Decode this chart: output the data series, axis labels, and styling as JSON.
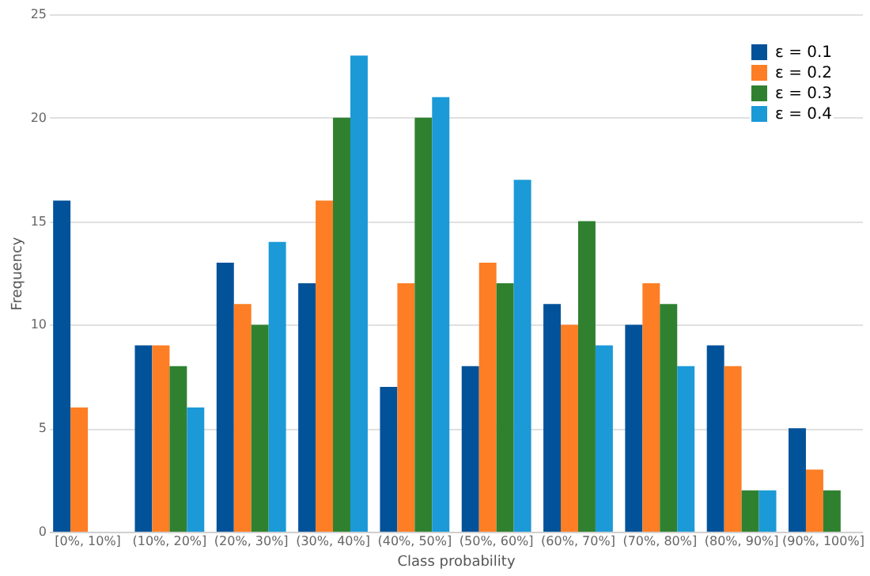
{
  "chart_data": {
    "type": "bar",
    "xlabel": "Class probability",
    "ylabel": "Frequency",
    "categories": [
      "[0%, 10%]",
      "(10%, 20%]",
      "(20%, 30%]",
      "(30%, 40%]",
      "(40%, 50%]",
      "(50%, 60%]",
      "(60%, 70%]",
      "(70%, 80%]",
      "(80%, 90%]",
      "(90%, 100%]"
    ],
    "series": [
      {
        "name": "ε = 0.1",
        "color": "#02529a",
        "values": [
          16,
          9,
          13,
          12,
          7,
          8,
          11,
          10,
          9,
          5
        ]
      },
      {
        "name": "ε = 0.2",
        "color": "#fd7e24",
        "values": [
          6,
          9,
          11,
          16,
          12,
          13,
          10,
          12,
          8,
          3
        ]
      },
      {
        "name": "ε = 0.3",
        "color": "#2f8130",
        "values": [
          0,
          8,
          10,
          20,
          20,
          12,
          15,
          11,
          2,
          2
        ]
      },
      {
        "name": "ε = 0.4",
        "color": "#1b9ad7",
        "values": [
          0,
          6,
          14,
          23,
          21,
          17,
          9,
          8,
          2,
          0
        ]
      }
    ],
    "ylim": [
      0,
      25
    ],
    "yticks": [
      0,
      5,
      10,
      15,
      20,
      25
    ],
    "grid": "y",
    "legend": "top right"
  }
}
